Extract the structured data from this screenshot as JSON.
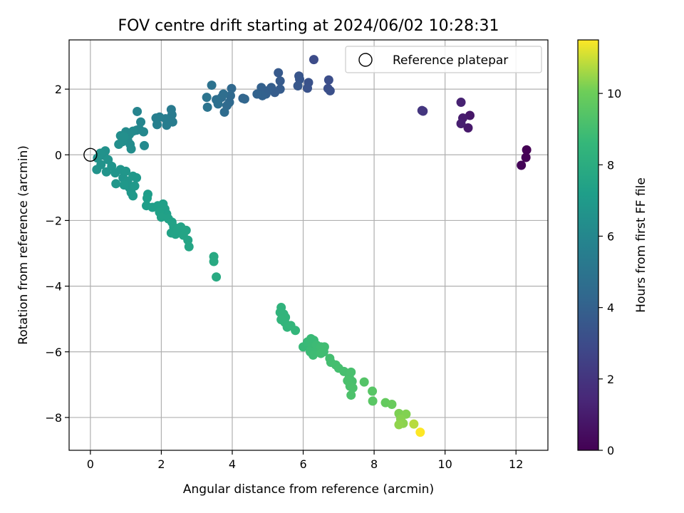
{
  "chart_data": {
    "type": "scatter",
    "title": "FOV centre drift starting at 2024/06/02 10:28:31",
    "xlabel": "Angular distance from reference (arcmin)",
    "ylabel": "Rotation from reference (arcmin)",
    "xlim": [
      -0.6,
      12.9
    ],
    "ylim": [
      -9.0,
      3.5
    ],
    "xticks": [
      0,
      2,
      4,
      6,
      8,
      10,
      12
    ],
    "yticks": [
      -8,
      -6,
      -4,
      -2,
      0,
      2
    ],
    "grid": true,
    "legend": {
      "placement": "top-right",
      "entries": [
        "Reference platepar"
      ]
    },
    "reference": {
      "x": 0,
      "y": 0
    },
    "colorbar": {
      "label": "Hours from first FF file",
      "range": [
        0,
        11.5
      ],
      "ticks": [
        0,
        2,
        4,
        6,
        8,
        10
      ],
      "colormap": "viridis"
    },
    "points": [
      {
        "x": 12.3,
        "y": 0.15,
        "c": 0.0
      },
      {
        "x": 12.28,
        "y": -0.08,
        "c": 0.05
      },
      {
        "x": 12.15,
        "y": -0.32,
        "c": 0.1
      },
      {
        "x": 10.7,
        "y": 1.2,
        "c": 0.8
      },
      {
        "x": 10.65,
        "y": 0.82,
        "c": 0.9
      },
      {
        "x": 10.5,
        "y": 1.12,
        "c": 1.0
      },
      {
        "x": 10.45,
        "y": 0.95,
        "c": 1.1
      },
      {
        "x": 10.45,
        "y": 1.6,
        "c": 1.2
      },
      {
        "x": 9.35,
        "y": 1.35,
        "c": 2.0
      },
      {
        "x": 9.38,
        "y": 1.33,
        "c": 2.05
      },
      {
        "x": 6.3,
        "y": 2.9,
        "c": 3.0
      },
      {
        "x": 6.72,
        "y": 2.28,
        "c": 3.1
      },
      {
        "x": 6.7,
        "y": 2.02,
        "c": 3.15
      },
      {
        "x": 6.76,
        "y": 1.95,
        "c": 3.2
      },
      {
        "x": 6.15,
        "y": 2.2,
        "c": 3.3
      },
      {
        "x": 6.12,
        "y": 2.03,
        "c": 3.35
      },
      {
        "x": 5.88,
        "y": 2.4,
        "c": 3.45
      },
      {
        "x": 5.9,
        "y": 2.3,
        "c": 3.5
      },
      {
        "x": 5.85,
        "y": 2.1,
        "c": 3.55
      },
      {
        "x": 5.3,
        "y": 2.5,
        "c": 3.65
      },
      {
        "x": 5.35,
        "y": 2.25,
        "c": 3.7
      },
      {
        "x": 5.35,
        "y": 2.0,
        "c": 3.75
      },
      {
        "x": 5.2,
        "y": 1.9,
        "c": 3.8
      },
      {
        "x": 5.1,
        "y": 2.05,
        "c": 3.85
      },
      {
        "x": 5.0,
        "y": 1.95,
        "c": 3.9
      },
      {
        "x": 4.95,
        "y": 1.85,
        "c": 3.95
      },
      {
        "x": 4.82,
        "y": 2.05,
        "c": 4.0
      },
      {
        "x": 4.85,
        "y": 1.8,
        "c": 4.05
      },
      {
        "x": 4.7,
        "y": 1.85,
        "c": 4.1
      },
      {
        "x": 4.3,
        "y": 1.72,
        "c": 4.2
      },
      {
        "x": 4.35,
        "y": 1.7,
        "c": 4.25
      },
      {
        "x": 3.98,
        "y": 2.02,
        "c": 4.35
      },
      {
        "x": 3.95,
        "y": 1.8,
        "c": 4.4
      },
      {
        "x": 3.92,
        "y": 1.6,
        "c": 4.45
      },
      {
        "x": 3.85,
        "y": 1.5,
        "c": 4.5
      },
      {
        "x": 3.78,
        "y": 1.3,
        "c": 4.55
      },
      {
        "x": 3.7,
        "y": 1.75,
        "c": 4.6
      },
      {
        "x": 3.75,
        "y": 1.85,
        "c": 4.62
      },
      {
        "x": 3.55,
        "y": 1.68,
        "c": 4.7
      },
      {
        "x": 3.6,
        "y": 1.55,
        "c": 4.75
      },
      {
        "x": 3.42,
        "y": 2.12,
        "c": 4.85
      },
      {
        "x": 3.28,
        "y": 1.75,
        "c": 4.95
      },
      {
        "x": 3.3,
        "y": 1.45,
        "c": 5.0
      },
      {
        "x": 2.28,
        "y": 1.38,
        "c": 5.3
      },
      {
        "x": 2.3,
        "y": 1.22,
        "c": 5.35
      },
      {
        "x": 2.32,
        "y": 1.0,
        "c": 5.4
      },
      {
        "x": 2.12,
        "y": 1.1,
        "c": 5.45
      },
      {
        "x": 2.15,
        "y": 0.9,
        "c": 5.5
      },
      {
        "x": 1.95,
        "y": 1.15,
        "c": 5.55
      },
      {
        "x": 1.85,
        "y": 1.12,
        "c": 5.6
      },
      {
        "x": 1.88,
        "y": 0.92,
        "c": 5.65
      },
      {
        "x": 1.32,
        "y": 1.32,
        "c": 5.85
      },
      {
        "x": 1.42,
        "y": 1.0,
        "c": 5.9
      },
      {
        "x": 1.38,
        "y": 0.78,
        "c": 5.95
      },
      {
        "x": 1.3,
        "y": 0.75,
        "c": 6.0
      },
      {
        "x": 1.5,
        "y": 0.7,
        "c": 6.05
      },
      {
        "x": 1.52,
        "y": 0.28,
        "c": 6.1
      },
      {
        "x": 1.2,
        "y": 0.72,
        "c": 6.15
      },
      {
        "x": 1.1,
        "y": 0.62,
        "c": 6.2
      },
      {
        "x": 1.0,
        "y": 0.7,
        "c": 6.22
      },
      {
        "x": 1.05,
        "y": 0.45,
        "c": 6.25
      },
      {
        "x": 1.12,
        "y": 0.32,
        "c": 6.28
      },
      {
        "x": 1.15,
        "y": 0.18,
        "c": 6.3
      },
      {
        "x": 0.85,
        "y": 0.58,
        "c": 6.35
      },
      {
        "x": 0.9,
        "y": 0.4,
        "c": 6.38
      },
      {
        "x": 0.8,
        "y": 0.32,
        "c": 6.4
      },
      {
        "x": 0.95,
        "y": 0.55,
        "c": 6.42
      },
      {
        "x": 0.42,
        "y": 0.12,
        "c": 6.5
      },
      {
        "x": 0.38,
        "y": -0.02,
        "c": 6.52
      },
      {
        "x": 0.28,
        "y": 0.05,
        "c": 6.55
      },
      {
        "x": 0.2,
        "y": -0.1,
        "c": 6.58
      },
      {
        "x": 0.18,
        "y": -0.45,
        "c": 6.6
      },
      {
        "x": 0.3,
        "y": -0.3,
        "c": 6.62
      },
      {
        "x": 0.5,
        "y": -0.15,
        "c": 6.64
      },
      {
        "x": 0.45,
        "y": -0.52,
        "c": 6.66
      },
      {
        "x": 0.6,
        "y": -0.35,
        "c": 6.68
      },
      {
        "x": 0.7,
        "y": -0.55,
        "c": 6.7
      },
      {
        "x": 0.85,
        "y": -0.45,
        "c": 6.72
      },
      {
        "x": 0.92,
        "y": -0.7,
        "c": 6.74
      },
      {
        "x": 1.0,
        "y": -0.5,
        "c": 6.76
      },
      {
        "x": 1.05,
        "y": -0.8,
        "c": 6.78
      },
      {
        "x": 1.1,
        "y": -1.0,
        "c": 6.8
      },
      {
        "x": 1.15,
        "y": -1.15,
        "c": 6.82
      },
      {
        "x": 0.72,
        "y": -0.88,
        "c": 6.84
      },
      {
        "x": 1.2,
        "y": -0.65,
        "c": 6.86
      },
      {
        "x": 1.3,
        "y": -0.7,
        "c": 6.88
      },
      {
        "x": 0.95,
        "y": -0.92,
        "c": 6.9
      },
      {
        "x": 1.25,
        "y": -0.95,
        "c": 6.92
      },
      {
        "x": 1.2,
        "y": -1.25,
        "c": 6.95
      },
      {
        "x": 1.62,
        "y": -1.2,
        "c": 7.15
      },
      {
        "x": 1.6,
        "y": -1.32,
        "c": 7.18
      },
      {
        "x": 1.58,
        "y": -1.55,
        "c": 7.2
      },
      {
        "x": 1.75,
        "y": -1.6,
        "c": 7.23
      },
      {
        "x": 1.9,
        "y": -1.55,
        "c": 7.25
      },
      {
        "x": 2.05,
        "y": -1.5,
        "c": 7.28
      },
      {
        "x": 2.1,
        "y": -1.65,
        "c": 7.3
      },
      {
        "x": 2.15,
        "y": -1.8,
        "c": 7.32
      },
      {
        "x": 1.95,
        "y": -1.75,
        "c": 7.34
      },
      {
        "x": 2.0,
        "y": -1.9,
        "c": 7.36
      },
      {
        "x": 2.2,
        "y": -1.95,
        "c": 7.38
      },
      {
        "x": 2.3,
        "y": -2.05,
        "c": 7.4
      },
      {
        "x": 2.35,
        "y": -2.2,
        "c": 7.42
      },
      {
        "x": 2.28,
        "y": -2.38,
        "c": 7.44
      },
      {
        "x": 2.4,
        "y": -2.42,
        "c": 7.46
      },
      {
        "x": 2.45,
        "y": -2.3,
        "c": 7.48
      },
      {
        "x": 2.55,
        "y": -2.2,
        "c": 7.5
      },
      {
        "x": 2.62,
        "y": -2.45,
        "c": 7.52
      },
      {
        "x": 2.7,
        "y": -2.3,
        "c": 7.54
      },
      {
        "x": 2.75,
        "y": -2.6,
        "c": 7.56
      },
      {
        "x": 2.78,
        "y": -2.8,
        "c": 7.58
      },
      {
        "x": 3.48,
        "y": -3.1,
        "c": 7.8
      },
      {
        "x": 3.48,
        "y": -3.25,
        "c": 7.82
      },
      {
        "x": 3.55,
        "y": -3.72,
        "c": 7.85
      },
      {
        "x": 5.38,
        "y": -4.65,
        "c": 8.35
      },
      {
        "x": 5.35,
        "y": -4.8,
        "c": 8.38
      },
      {
        "x": 5.45,
        "y": -4.85,
        "c": 8.4
      },
      {
        "x": 5.5,
        "y": -4.95,
        "c": 8.42
      },
      {
        "x": 5.38,
        "y": -5.02,
        "c": 8.44
      },
      {
        "x": 5.48,
        "y": -5.1,
        "c": 8.46
      },
      {
        "x": 5.55,
        "y": -5.25,
        "c": 8.48
      },
      {
        "x": 5.65,
        "y": -5.2,
        "c": 8.5
      },
      {
        "x": 5.78,
        "y": -5.35,
        "c": 8.52
      },
      {
        "x": 6.0,
        "y": -5.85,
        "c": 8.7
      },
      {
        "x": 6.12,
        "y": -5.7,
        "c": 8.72
      },
      {
        "x": 6.22,
        "y": -5.6,
        "c": 8.74
      },
      {
        "x": 6.3,
        "y": -5.65,
        "c": 8.76
      },
      {
        "x": 6.25,
        "y": -5.85,
        "c": 8.78
      },
      {
        "x": 6.2,
        "y": -6.0,
        "c": 8.8
      },
      {
        "x": 6.38,
        "y": -5.8,
        "c": 8.82
      },
      {
        "x": 6.42,
        "y": -5.95,
        "c": 8.84
      },
      {
        "x": 6.28,
        "y": -6.1,
        "c": 8.86
      },
      {
        "x": 6.5,
        "y": -5.85,
        "c": 8.88
      },
      {
        "x": 6.58,
        "y": -6.0,
        "c": 8.9
      },
      {
        "x": 6.6,
        "y": -5.85,
        "c": 8.92
      },
      {
        "x": 6.5,
        "y": -6.05,
        "c": 8.94
      },
      {
        "x": 6.75,
        "y": -6.2,
        "c": 9.0
      },
      {
        "x": 6.78,
        "y": -6.32,
        "c": 9.02
      },
      {
        "x": 6.92,
        "y": -6.4,
        "c": 9.04
      },
      {
        "x": 7.0,
        "y": -6.5,
        "c": 9.06
      },
      {
        "x": 7.15,
        "y": -6.6,
        "c": 9.08
      },
      {
        "x": 7.3,
        "y": -6.78,
        "c": 9.1
      },
      {
        "x": 7.35,
        "y": -6.62,
        "c": 9.12
      },
      {
        "x": 7.38,
        "y": -6.9,
        "c": 9.14
      },
      {
        "x": 7.25,
        "y": -6.88,
        "c": 9.16
      },
      {
        "x": 7.32,
        "y": -7.05,
        "c": 9.18
      },
      {
        "x": 7.4,
        "y": -7.1,
        "c": 9.2
      },
      {
        "x": 7.35,
        "y": -7.32,
        "c": 9.22
      },
      {
        "x": 7.72,
        "y": -6.92,
        "c": 9.4
      },
      {
        "x": 7.95,
        "y": -7.2,
        "c": 9.5
      },
      {
        "x": 7.96,
        "y": -7.5,
        "c": 9.55
      },
      {
        "x": 8.32,
        "y": -7.55,
        "c": 9.8
      },
      {
        "x": 8.5,
        "y": -7.6,
        "c": 9.9
      },
      {
        "x": 8.7,
        "y": -7.88,
        "c": 10.2
      },
      {
        "x": 8.9,
        "y": -7.9,
        "c": 10.25
      },
      {
        "x": 8.75,
        "y": -8.05,
        "c": 10.3
      },
      {
        "x": 8.82,
        "y": -8.18,
        "c": 10.35
      },
      {
        "x": 8.7,
        "y": -8.22,
        "c": 10.4
      },
      {
        "x": 9.12,
        "y": -8.2,
        "c": 10.8
      },
      {
        "x": 9.3,
        "y": -8.45,
        "c": 11.5
      }
    ]
  }
}
